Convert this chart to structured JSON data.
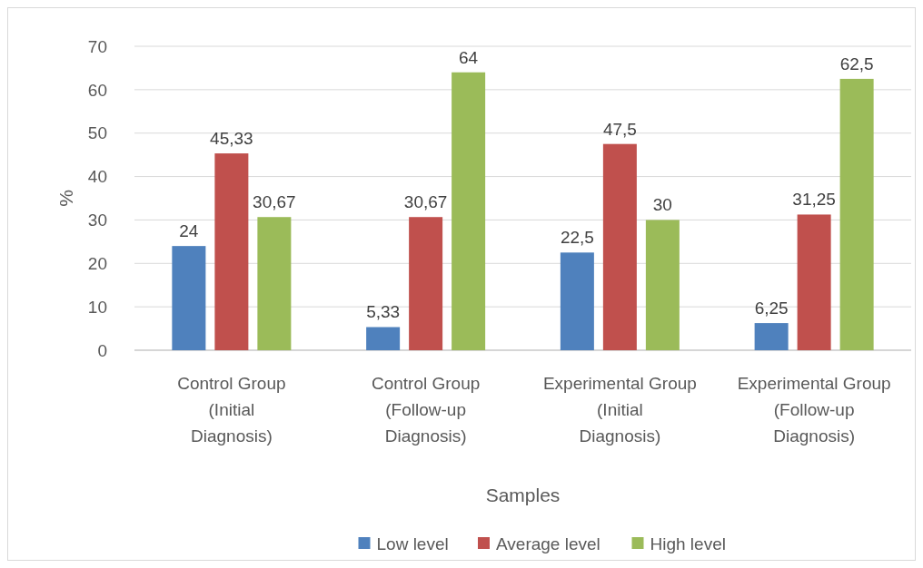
{
  "chart_data": {
    "type": "bar",
    "categories": [
      "Control Group (Initial Diagnosis)",
      "Control Group (Follow-up Diagnosis)",
      "Experimental Group (Initial Diagnosis)",
      "Experimental Group (Follow-up Diagnosis)"
    ],
    "series": [
      {
        "name": "Low level",
        "color": "#4f81bd",
        "values": [
          24,
          5.33,
          22.5,
          6.25
        ],
        "value_labels": [
          "24",
          "5,33",
          "22,5",
          "6,25"
        ]
      },
      {
        "name": "Average level",
        "color": "#c0504d",
        "values": [
          45.33,
          30.67,
          47.5,
          31.25
        ],
        "value_labels": [
          "45,33",
          "30,67",
          "47,5",
          "31,25"
        ]
      },
      {
        "name": "High level",
        "color": "#9bbb59",
        "values": [
          30.67,
          64,
          30,
          62.5
        ],
        "value_labels": [
          "30,67",
          "64",
          "30",
          "62,5"
        ]
      }
    ],
    "xlabel": "Samples",
    "ylabel": "%",
    "ylim": [
      0,
      70
    ],
    "yticks": [
      0,
      10,
      20,
      30,
      40,
      50,
      60,
      70
    ],
    "grid": "y",
    "legend": "bottom"
  }
}
